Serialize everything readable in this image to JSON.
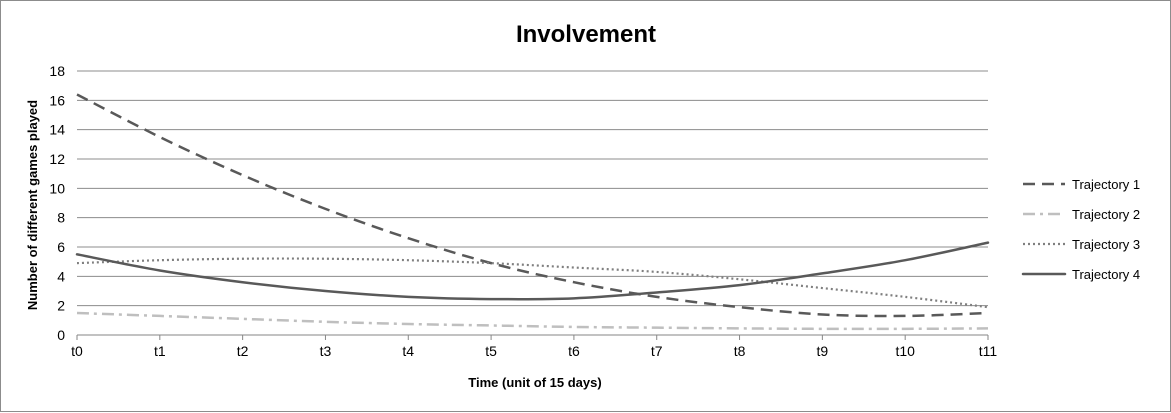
{
  "chart_data": {
    "type": "line",
    "title": "Involvement",
    "xlabel": "Time (unit of 15 days)",
    "ylabel": "Number of different games played",
    "categories": [
      "t0",
      "t1",
      "t2",
      "t3",
      "t4",
      "t5",
      "t6",
      "t7",
      "t8",
      "t9",
      "t10",
      "t11"
    ],
    "ylim": [
      0,
      18
    ],
    "yticks": [
      0,
      2,
      4,
      6,
      8,
      10,
      12,
      14,
      16,
      18
    ],
    "grid": true,
    "legend_position": "right",
    "series": [
      {
        "name": "Trajectory 1",
        "color": "#595959",
        "dash": "dashed",
        "values": [
          16.4,
          13.5,
          10.9,
          8.6,
          6.6,
          4.9,
          3.6,
          2.6,
          1.9,
          1.4,
          1.3,
          1.5
        ]
      },
      {
        "name": "Trajectory 2",
        "color": "#bfbfbf",
        "dash": "dashdot",
        "values": [
          1.5,
          1.3,
          1.1,
          0.9,
          0.75,
          0.65,
          0.55,
          0.5,
          0.45,
          0.42,
          0.42,
          0.45
        ]
      },
      {
        "name": "Trajectory 3",
        "color": "#7f7f7f",
        "dash": "dotted",
        "values": [
          4.9,
          5.1,
          5.2,
          5.2,
          5.1,
          4.9,
          4.6,
          4.3,
          3.8,
          3.2,
          2.6,
          1.9
        ]
      },
      {
        "name": "Trajectory 4",
        "color": "#595959",
        "dash": "solid",
        "values": [
          5.5,
          4.4,
          3.6,
          3.0,
          2.6,
          2.45,
          2.5,
          2.9,
          3.4,
          4.2,
          5.1,
          6.3
        ]
      }
    ]
  }
}
